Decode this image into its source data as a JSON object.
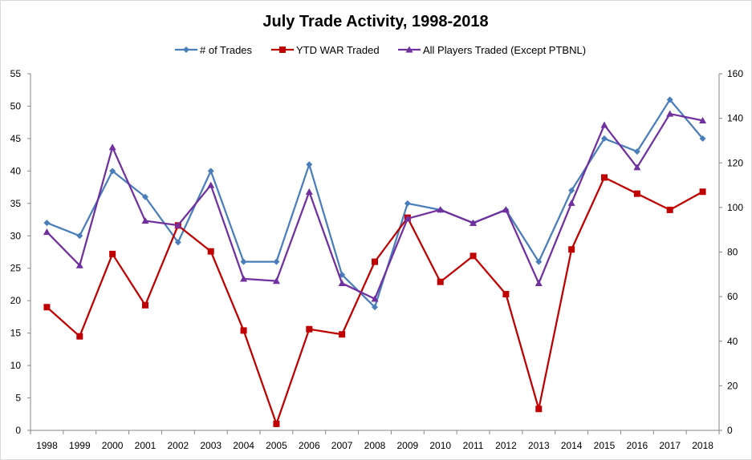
{
  "chart_data": {
    "type": "line",
    "title": "July Trade Activity, 1998-2018",
    "categories": [
      "1998",
      "1999",
      "2000",
      "2001",
      "2002",
      "2003",
      "2004",
      "2005",
      "2006",
      "2007",
      "2008",
      "2009",
      "2010",
      "2011",
      "2012",
      "2013",
      "2014",
      "2015",
      "2016",
      "2017",
      "2018"
    ],
    "y_left": {
      "min": 0,
      "max": 55,
      "step": 5,
      "ticks": [
        "0",
        "5",
        "10",
        "15",
        "20",
        "25",
        "30",
        "35",
        "40",
        "45",
        "50",
        "55"
      ]
    },
    "y_right": {
      "min": 0,
      "max": 160,
      "step": 20,
      "ticks": [
        "0",
        "20",
        "40",
        "60",
        "80",
        "100",
        "120",
        "140",
        "160"
      ]
    },
    "legend_position": "top",
    "series": [
      {
        "name": "# of Trades",
        "axis": "left",
        "color": "#4a7ebb",
        "marker": "diamond",
        "values": [
          32,
          30,
          40,
          36,
          29,
          40,
          26,
          26,
          41,
          24,
          19,
          35,
          34,
          32,
          34,
          26,
          37,
          45,
          43,
          51,
          45
        ]
      },
      {
        "name": "YTD WAR Traded",
        "axis": "left",
        "color": "#c00000",
        "marker": "square",
        "values": [
          19,
          14.5,
          27.2,
          19.3,
          31.6,
          27.6,
          15.4,
          1,
          15.6,
          14.8,
          26,
          32.8,
          22.9,
          26.9,
          21,
          3.3,
          27.9,
          39,
          36.5,
          34,
          36.8
        ]
      },
      {
        "name": "All Players Traded (Except PTBNL)",
        "axis": "right",
        "color": "#7030a0",
        "marker": "triangle",
        "values": [
          89,
          74,
          127,
          94,
          92,
          110,
          68,
          67,
          107,
          66,
          59,
          95,
          99,
          93,
          99,
          66,
          102,
          137,
          118,
          142,
          139
        ]
      }
    ]
  }
}
